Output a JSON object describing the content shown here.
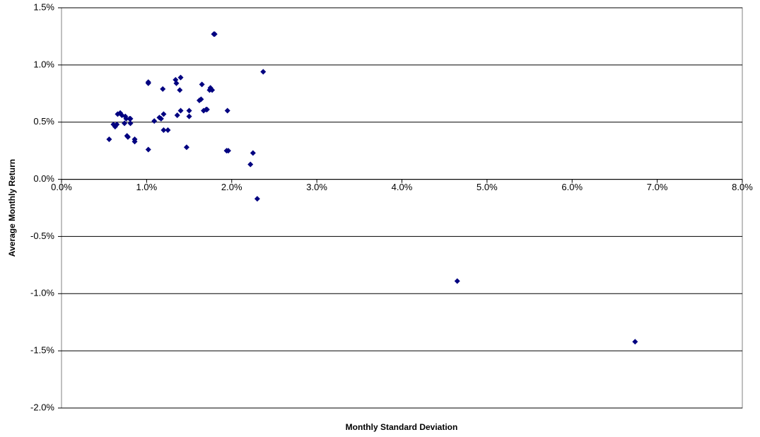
{
  "chart_data": {
    "type": "scatter",
    "xlabel": "Monthly Standard Deviation",
    "ylabel": "Average Monthly Return",
    "color": "#000080",
    "grid": true,
    "x": [
      0.56,
      0.61,
      0.63,
      0.65,
      0.66,
      0.69,
      0.71,
      0.75,
      0.74,
      0.76,
      0.77,
      0.78,
      0.8,
      0.81,
      0.81,
      0.86,
      0.86,
      1.02,
      1.02,
      1.02,
      1.09,
      1.15,
      1.17,
      1.2,
      1.19,
      1.2,
      1.25,
      1.34,
      1.35,
      1.36,
      1.4,
      1.39,
      1.4,
      1.47,
      1.5,
      1.5,
      1.62,
      1.64,
      1.65,
      1.67,
      1.7,
      1.71,
      1.74,
      1.75,
      1.77,
      1.79,
      1.8,
      1.94,
      1.96,
      1.95,
      2.22,
      2.25,
      2.3,
      2.37,
      4.65,
      6.74
    ],
    "values": [
      0.35,
      0.48,
      0.46,
      0.48,
      0.57,
      0.58,
      0.56,
      0.55,
      0.49,
      0.53,
      0.38,
      0.37,
      0.53,
      0.49,
      0.53,
      0.35,
      0.33,
      0.85,
      0.84,
      0.26,
      0.51,
      0.54,
      0.53,
      0.57,
      0.79,
      0.43,
      0.43,
      0.87,
      0.84,
      0.56,
      0.89,
      0.78,
      0.6,
      0.28,
      0.6,
      0.55,
      0.69,
      0.7,
      0.83,
      0.6,
      0.61,
      0.61,
      0.78,
      0.8,
      0.78,
      1.27,
      1.27,
      0.25,
      0.25,
      0.6,
      0.13,
      0.23,
      -0.17,
      0.94,
      -0.89,
      -1.42
    ],
    "xlim": [
      0,
      8
    ],
    "ylim": [
      -2,
      1.5
    ],
    "xticks": [
      {
        "value": 0,
        "label": "0.0%"
      },
      {
        "value": 1,
        "label": "1.0%"
      },
      {
        "value": 2,
        "label": "2.0%"
      },
      {
        "value": 3,
        "label": "3.0%"
      },
      {
        "value": 4,
        "label": "4.0%"
      },
      {
        "value": 5,
        "label": "5.0%"
      },
      {
        "value": 6,
        "label": "6.0%"
      },
      {
        "value": 7,
        "label": "7.0%"
      },
      {
        "value": 8,
        "label": "8.0%"
      }
    ],
    "yticks": [
      {
        "value": -2,
        "label": "-2.0%"
      },
      {
        "value": -1.5,
        "label": "-1.5%"
      },
      {
        "value": -1,
        "label": "-1.0%"
      },
      {
        "value": -0.5,
        "label": "-0.5%"
      },
      {
        "value": 0,
        "label": "0.0%"
      },
      {
        "value": 0.5,
        "label": "0.5%"
      },
      {
        "value": 1,
        "label": "1.0%"
      },
      {
        "value": 1.5,
        "label": "1.5%"
      }
    ]
  }
}
